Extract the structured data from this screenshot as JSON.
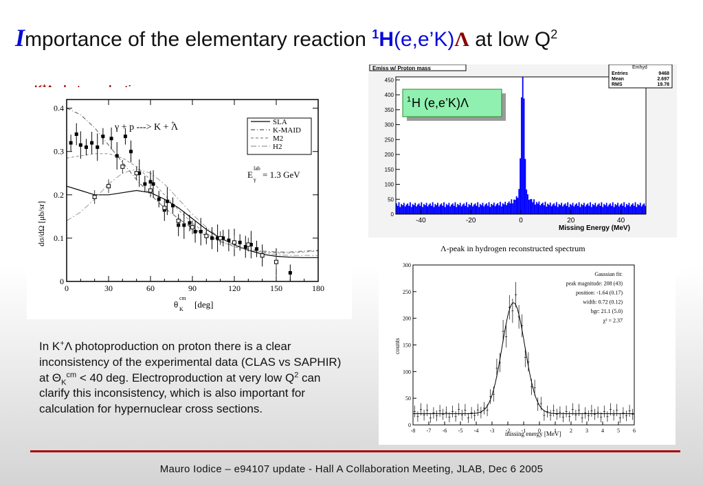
{
  "slide": {
    "title_first_letter": "I",
    "title_rest": "mportance of the elementary reaction ",
    "title_super": "1",
    "title_h": "H",
    "title_reaction": "(e,e’K)",
    "title_lambda": "Λ",
    "title_tail": " at low Q",
    "title_q_power": "2",
    "section_label_k": "K",
    "section_label_plus": "+",
    "section_label_rest": "Λ photoproduction",
    "body": {
      "p1": "In K",
      "p1_plus": "+",
      "p2": "Λ photoproduction on proton there is a clear inconsistency of the experimental data (CLAS vs SAPHIR) at  Θ",
      "p2_sub": "K",
      "p2_sup": "cm",
      "p3": " < 40 deg. Electroproduction at very low Q",
      "p3_sup": "2",
      "p4": " can clarify this inconsistency, which is also important for calculation for hypernuclear cross sections."
    },
    "footer": "Mauro Iodice – e94107 update - Hall A Collaboration Meeting, JLAB, Dec 6 2005",
    "accent_color": "#0a0ad8",
    "rule_color": "#a80000"
  },
  "chart_data": [
    {
      "type": "scatter",
      "reaction_label": "γ + p ---> K  + Λ",
      "reaction_plus": "+",
      "energy_label": "E",
      "energy_sub": "γ",
      "energy_sup": "lab",
      "energy_value": "= 1.3 GeV",
      "xlabel": "θ",
      "xlabel_sub": "K",
      "xlabel_sup": "cm",
      "xlabel_unit": "[deg]",
      "ylabel": "dσ/dΩ  [μb/sr]",
      "xlim": [
        0,
        180
      ],
      "ylim": [
        0,
        0.42
      ],
      "xticks": [
        "0",
        "30",
        "60",
        "90",
        "120",
        "150",
        "180"
      ],
      "yticks": [
        "0",
        "0.1",
        "0.2",
        "0.3",
        "0.4"
      ],
      "legend": [
        "SLA",
        "K-MAID",
        "M2",
        "H2"
      ],
      "legend_position": "top-right",
      "series": [
        {
          "name": "SLA",
          "x": [
            0,
            10,
            20,
            30,
            40,
            50,
            60,
            70,
            80,
            90,
            100,
            110,
            120,
            130,
            140,
            150,
            160,
            170,
            180
          ],
          "y": [
            0.22,
            0.21,
            0.2,
            0.2,
            0.205,
            0.21,
            0.205,
            0.19,
            0.17,
            0.145,
            0.12,
            0.1,
            0.085,
            0.072,
            0.063,
            0.058,
            0.056,
            0.055,
            0.055
          ]
        },
        {
          "name": "K-MAID",
          "x": [
            0,
            10,
            20,
            30,
            40,
            50,
            60,
            70,
            80,
            90,
            100,
            110,
            120,
            130,
            140,
            150,
            160,
            170,
            180
          ],
          "y": [
            0.4,
            0.385,
            0.355,
            0.315,
            0.275,
            0.235,
            0.2,
            0.17,
            0.145,
            0.123,
            0.105,
            0.092,
            0.082,
            0.075,
            0.07,
            0.068,
            0.068,
            0.07,
            0.072
          ]
        },
        {
          "name": "M2",
          "x": [
            0,
            10,
            20,
            30,
            40,
            50,
            60,
            70,
            80,
            90,
            100,
            110,
            120,
            130,
            140,
            150,
            160,
            170,
            180
          ],
          "y": [
            0.285,
            0.29,
            0.295,
            0.295,
            0.285,
            0.265,
            0.235,
            0.2,
            0.165,
            0.135,
            0.11,
            0.093,
            0.08,
            0.072,
            0.068,
            0.066,
            0.066,
            0.068,
            0.07
          ]
        },
        {
          "name": "H2",
          "x": [
            0,
            10,
            20,
            30,
            40,
            50,
            60,
            70,
            80,
            90,
            100,
            110,
            120,
            130,
            140,
            150,
            160,
            170,
            180
          ],
          "y": [
            0.14,
            0.16,
            0.19,
            0.225,
            0.25,
            0.26,
            0.25,
            0.225,
            0.19,
            0.155,
            0.125,
            0.1,
            0.085,
            0.073,
            0.066,
            0.062,
            0.06,
            0.06,
            0.06
          ]
        },
        {
          "name": "filled",
          "x": [
            3,
            7,
            10,
            14,
            18,
            22,
            26,
            32,
            36,
            42,
            46,
            52,
            56,
            60,
            62,
            66,
            70,
            72,
            76,
            80,
            84,
            88,
            92,
            96,
            100,
            104,
            108,
            112,
            116,
            120,
            124,
            128,
            132,
            136,
            140,
            150,
            160
          ],
          "y": [
            0.32,
            0.34,
            0.315,
            0.31,
            0.32,
            0.31,
            0.335,
            0.33,
            0.29,
            0.335,
            0.3,
            0.25,
            0.225,
            0.23,
            0.225,
            0.19,
            0.165,
            0.185,
            0.175,
            0.13,
            0.13,
            0.135,
            0.115,
            0.115,
            0.105,
            0.1,
            0.1,
            0.1,
            0.095,
            0.09,
            0.09,
            0.08,
            0.085,
            0.075,
            0.06,
            0.045,
            0.02
          ]
        },
        {
          "name": "open",
          "x": [
            20,
            30,
            40,
            50,
            60,
            70,
            80,
            90,
            100,
            110,
            120,
            130,
            140,
            150
          ],
          "y": [
            0.195,
            0.22,
            0.265,
            0.25,
            0.21,
            0.17,
            0.14,
            0.125,
            0.105,
            0.1,
            0.09,
            0.085,
            0.06,
            0.045
          ]
        }
      ]
    },
    {
      "type": "bar",
      "histogram_title": "Emiss w/ Proton mass",
      "inset_label_super": "1",
      "inset_label": "H (e,e’K)Λ",
      "stats_title": "Emhyd",
      "stats": [
        [
          "Entries",
          "9468"
        ],
        [
          "Mean",
          "2.697"
        ],
        [
          "RMS",
          "19.78"
        ]
      ],
      "xlabel": "Missing Energy (MeV)",
      "xlim": [
        -50,
        50
      ],
      "ylim": [
        0,
        460
      ],
      "xticks": [
        "-40",
        "-20",
        "0",
        "20",
        "40"
      ],
      "yticks": [
        "0",
        "50",
        "100",
        "150",
        "200",
        "250",
        "300",
        "350",
        "400",
        "450"
      ],
      "peak_x": 0.5,
      "peak_height": 445,
      "background_level": 30,
      "bar_color": "#0000ff"
    },
    {
      "type": "scatter",
      "title": "Λ-peak in hydrogen reconstructed spectrum",
      "fit_lines": [
        "Gaussian fit:",
        "peak magnitude: 208 (43)",
        "position:  -1.64 (0.17)",
        "width: 0.72 (0.12)",
        "bgr: 21.1 (5.0)",
        "χ² = 2.37"
      ],
      "xlabel": "missing energy [MeV]",
      "ylabel": "counts",
      "xlim": [
        -8,
        6
      ],
      "ylim": [
        0,
        300
      ],
      "xticks": [
        "-8",
        "-7",
        "-6",
        "-5",
        "-4",
        "-3",
        "-2",
        "-1",
        "0",
        "1",
        "2",
        "3",
        "4",
        "5",
        "6"
      ],
      "yticks": [
        "0",
        "50",
        "100",
        "150",
        "200",
        "250",
        "300"
      ],
      "fit": {
        "peak": 208,
        "position": -1.64,
        "width": 0.72,
        "bgr": 21.1
      }
    }
  ]
}
